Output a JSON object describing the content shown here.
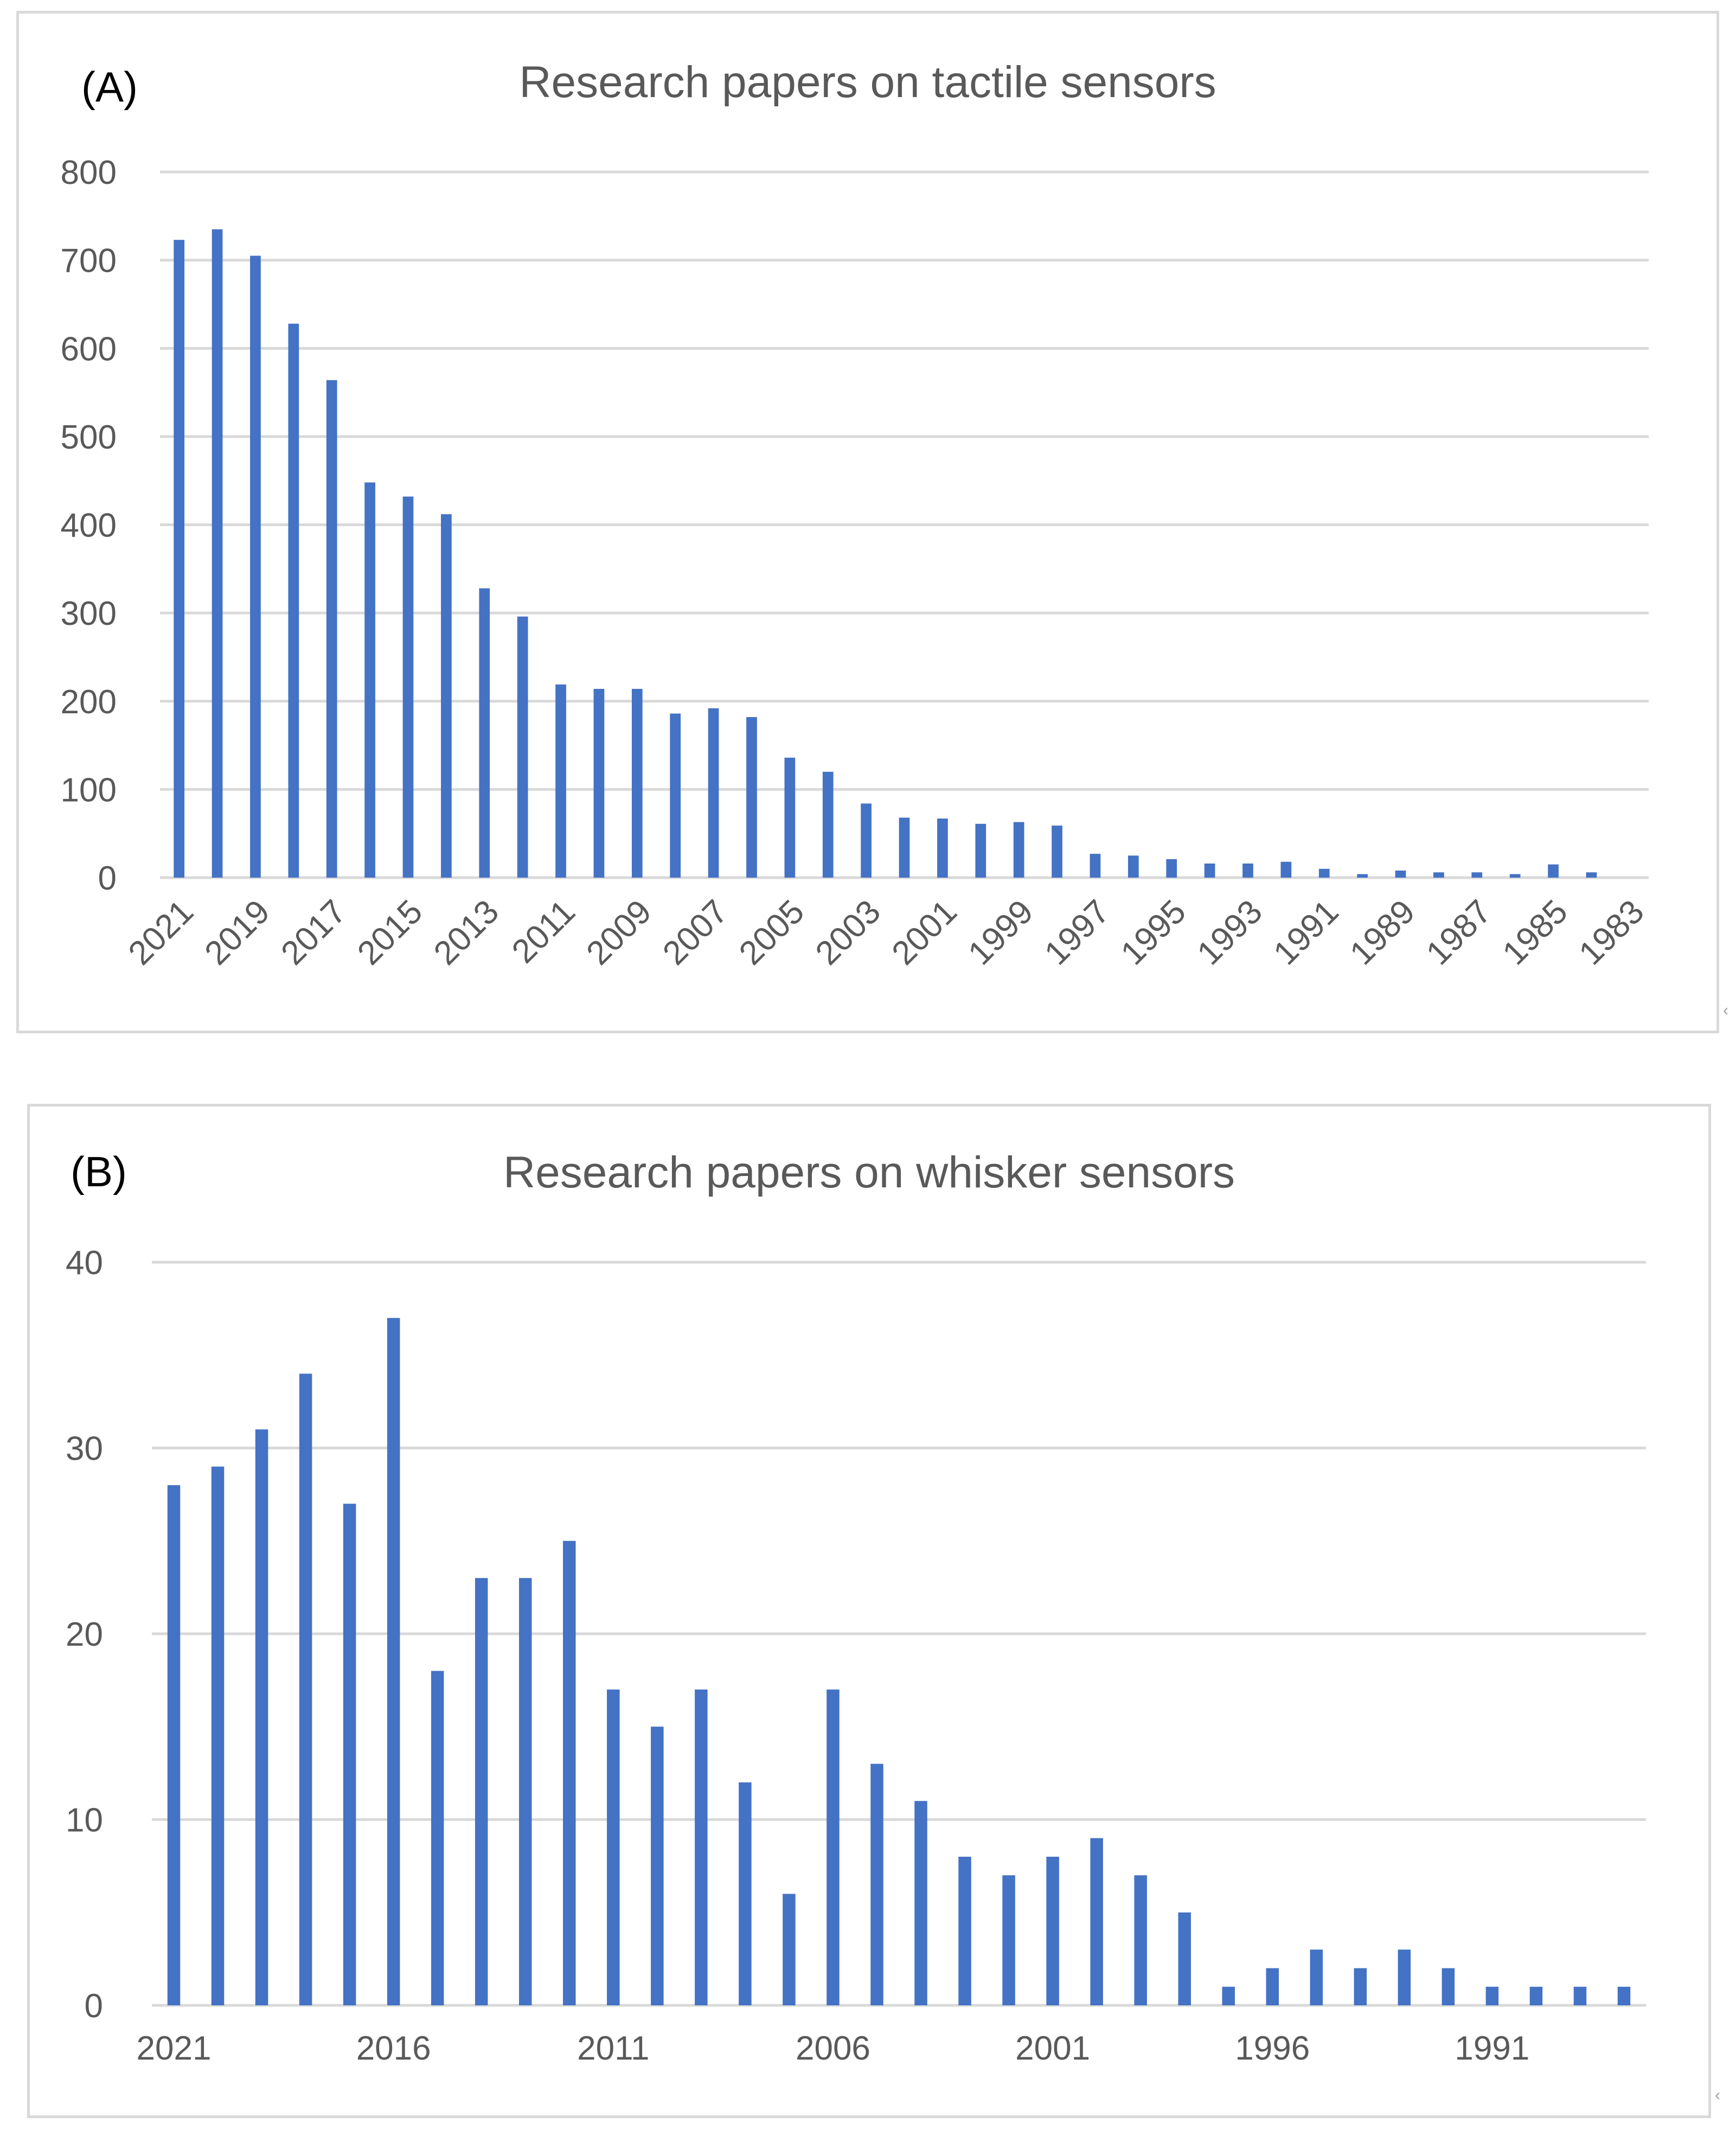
{
  "chart_data": [
    {
      "type": "bar",
      "panel_label": "(A)",
      "title": "Research papers on tactile sensors",
      "xlabel": "",
      "ylabel": "",
      "ylim": [
        0,
        800
      ],
      "yticks": [
        0,
        100,
        200,
        300,
        400,
        500,
        600,
        700,
        800
      ],
      "grid": true,
      "color": "#4472c4",
      "categories": [
        "2021",
        "2020",
        "2019",
        "2018",
        "2017",
        "2016",
        "2015",
        "2014",
        "2013",
        "2012",
        "2011",
        "2010",
        "2009",
        "2008",
        "2007",
        "2006",
        "2005",
        "2004",
        "2003",
        "2002",
        "2001",
        "2000",
        "1999",
        "1998",
        "1997",
        "1996",
        "1995",
        "1994",
        "1993",
        "1992",
        "1991",
        "1990",
        "1989",
        "1988",
        "1987",
        "1986",
        "1985",
        "1984",
        "1983"
      ],
      "tick_labels": [
        "2021",
        "2019",
        "2017",
        "2015",
        "2013",
        "2011",
        "2009",
        "2007",
        "2005",
        "2003",
        "2001",
        "1999",
        "1997",
        "1995",
        "1993",
        "1991",
        "1989",
        "1987",
        "1985",
        "1983"
      ],
      "values": [
        723,
        735,
        705,
        628,
        564,
        448,
        432,
        412,
        328,
        296,
        219,
        214,
        214,
        186,
        192,
        182,
        136,
        120,
        84,
        68,
        67,
        61,
        63,
        59,
        27,
        25,
        21,
        16,
        16,
        18,
        10,
        4,
        8,
        6,
        6,
        4,
        15,
        6,
        0
      ]
    },
    {
      "type": "bar",
      "panel_label": "(B)",
      "title": "Research papers on whisker sensors",
      "xlabel": "",
      "ylabel": "",
      "ylim": [
        0,
        40
      ],
      "yticks": [
        0,
        10,
        20,
        30,
        40
      ],
      "grid": true,
      "color": "#4472c4",
      "categories": [
        "2021",
        "2020",
        "2019",
        "2018",
        "2017",
        "2016",
        "2015",
        "2014",
        "2013",
        "2012",
        "2011",
        "2010",
        "2009",
        "2008",
        "2007",
        "2006",
        "2005",
        "2004",
        "2003",
        "2002",
        "2001",
        "2000",
        "1999",
        "1998",
        "1997",
        "1996",
        "1995",
        "1994",
        "1993",
        "1992",
        "1991",
        "1990",
        "1989",
        "1988"
      ],
      "tick_labels": [
        "2021",
        "2016",
        "2011",
        "2006",
        "2001",
        "1996",
        "1991"
      ],
      "values": [
        28,
        29,
        31,
        34,
        27,
        37,
        18,
        23,
        23,
        25,
        17,
        15,
        17,
        12,
        6,
        17,
        13,
        11,
        8,
        7,
        8,
        9,
        7,
        5,
        1,
        2,
        3,
        2,
        3,
        2,
        1,
        1,
        1,
        1
      ]
    }
  ]
}
